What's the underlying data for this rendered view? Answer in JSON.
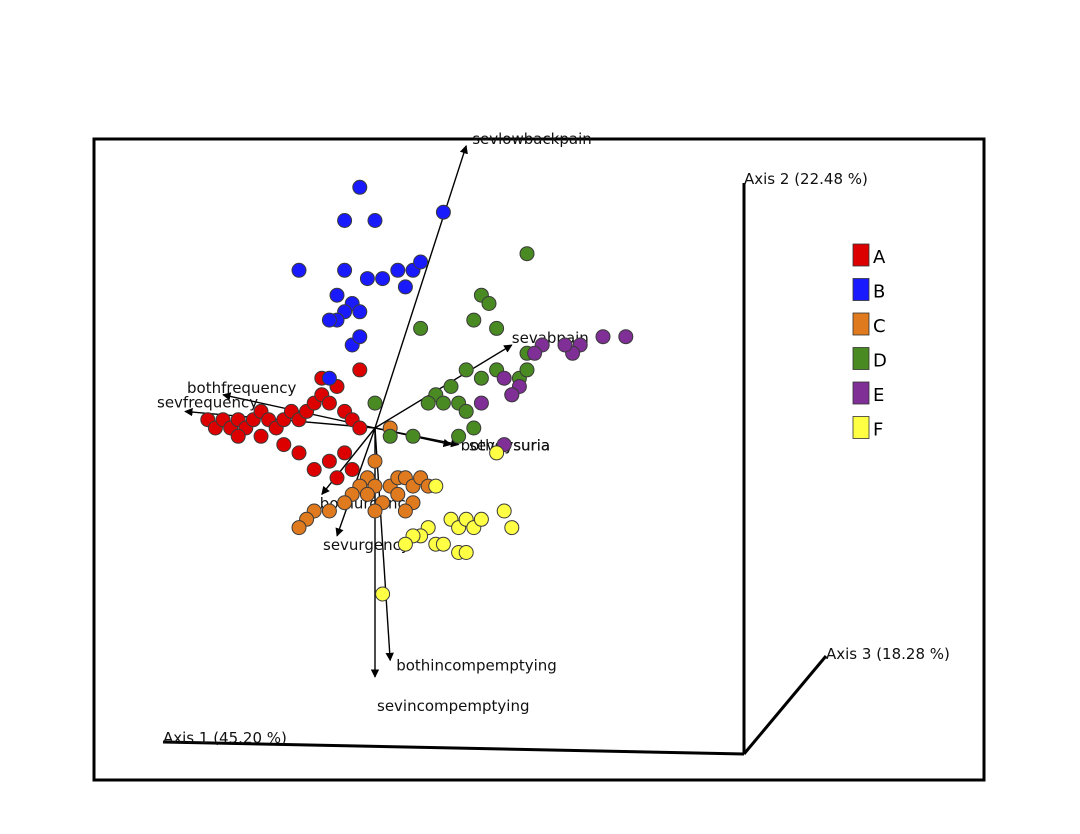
{
  "chart_data": {
    "type": "scatter",
    "title": "",
    "projection": "3d",
    "axes": {
      "x": "Axis 1 (45.20 %)",
      "y": "Axis 2 (22.48 %)",
      "z": "Axis 3 (18.28 %)"
    },
    "legend": {
      "position": "right",
      "groups": [
        {
          "name": "A",
          "color": "#dd0000"
        },
        {
          "name": "B",
          "color": "#1a1aff"
        },
        {
          "name": "C",
          "color": "#e07a1f"
        },
        {
          "name": "D",
          "color": "#4a8a22"
        },
        {
          "name": "E",
          "color": "#7f2f96"
        },
        {
          "name": "F",
          "color": "#ffff44"
        }
      ]
    },
    "biplot_vectors": [
      {
        "name": "sevlowbackpain",
        "end": [
          0.12,
          0.34
        ]
      },
      {
        "name": "sevabpain",
        "end": [
          0.18,
          0.1
        ]
      },
      {
        "name": "bothfrequency",
        "end": [
          -0.2,
          0.04
        ]
      },
      {
        "name": "sevfrequency",
        "end": [
          -0.25,
          0.02
        ]
      },
      {
        "name": "bothdysuria",
        "end": [
          0.11,
          -0.02
        ]
      },
      {
        "name": "sevdysuria",
        "end": [
          0.1,
          -0.02
        ]
      },
      {
        "name": "bothurgency",
        "end": [
          -0.07,
          -0.08
        ]
      },
      {
        "name": "sevurgency",
        "end": [
          -0.05,
          -0.13
        ]
      },
      {
        "name": "bothincompemptying",
        "end": [
          0.02,
          -0.28
        ]
      },
      {
        "name": "sevincompemptying",
        "end": [
          0.0,
          -0.3
        ]
      }
    ],
    "points": [
      {
        "group": "A",
        "x": -0.22,
        "y": 0.01
      },
      {
        "group": "A",
        "x": -0.21,
        "y": 0.0
      },
      {
        "group": "A",
        "x": -0.2,
        "y": 0.01
      },
      {
        "group": "A",
        "x": -0.19,
        "y": 0.0
      },
      {
        "group": "A",
        "x": -0.18,
        "y": 0.01
      },
      {
        "group": "A",
        "x": -0.17,
        "y": 0.0
      },
      {
        "group": "A",
        "x": -0.16,
        "y": 0.01
      },
      {
        "group": "A",
        "x": -0.15,
        "y": 0.02
      },
      {
        "group": "A",
        "x": -0.14,
        "y": 0.01
      },
      {
        "group": "A",
        "x": -0.13,
        "y": 0.0
      },
      {
        "group": "A",
        "x": -0.12,
        "y": 0.01
      },
      {
        "group": "A",
        "x": -0.11,
        "y": 0.02
      },
      {
        "group": "A",
        "x": -0.1,
        "y": 0.01
      },
      {
        "group": "A",
        "x": -0.09,
        "y": 0.02
      },
      {
        "group": "A",
        "x": -0.08,
        "y": 0.03
      },
      {
        "group": "A",
        "x": -0.07,
        "y": 0.04
      },
      {
        "group": "A",
        "x": -0.06,
        "y": 0.03
      },
      {
        "group": "A",
        "x": -0.05,
        "y": 0.05
      },
      {
        "group": "A",
        "x": -0.04,
        "y": 0.02
      },
      {
        "group": "A",
        "x": -0.03,
        "y": 0.01
      },
      {
        "group": "A",
        "x": -0.02,
        "y": 0.0
      },
      {
        "group": "A",
        "x": -0.18,
        "y": -0.01
      },
      {
        "group": "A",
        "x": -0.15,
        "y": -0.01
      },
      {
        "group": "A",
        "x": -0.12,
        "y": -0.02
      },
      {
        "group": "A",
        "x": -0.1,
        "y": -0.03
      },
      {
        "group": "A",
        "x": -0.06,
        "y": -0.04
      },
      {
        "group": "A",
        "x": -0.04,
        "y": -0.03
      },
      {
        "group": "A",
        "x": -0.03,
        "y": -0.05
      },
      {
        "group": "A",
        "x": -0.08,
        "y": -0.05
      },
      {
        "group": "A",
        "x": -0.05,
        "y": -0.06
      },
      {
        "group": "A",
        "x": -0.02,
        "y": 0.07
      },
      {
        "group": "A",
        "x": -0.07,
        "y": 0.06
      },
      {
        "group": "B",
        "x": -0.02,
        "y": 0.29
      },
      {
        "group": "B",
        "x": -0.04,
        "y": 0.25
      },
      {
        "group": "B",
        "x": 0.0,
        "y": 0.25
      },
      {
        "group": "B",
        "x": 0.09,
        "y": 0.26
      },
      {
        "group": "B",
        "x": -0.1,
        "y": 0.19
      },
      {
        "group": "B",
        "x": -0.04,
        "y": 0.19
      },
      {
        "group": "B",
        "x": -0.01,
        "y": 0.18
      },
      {
        "group": "B",
        "x": 0.01,
        "y": 0.18
      },
      {
        "group": "B",
        "x": 0.03,
        "y": 0.19
      },
      {
        "group": "B",
        "x": 0.04,
        "y": 0.17
      },
      {
        "group": "B",
        "x": 0.05,
        "y": 0.19
      },
      {
        "group": "B",
        "x": 0.06,
        "y": 0.2
      },
      {
        "group": "B",
        "x": -0.05,
        "y": 0.16
      },
      {
        "group": "B",
        "x": -0.03,
        "y": 0.15
      },
      {
        "group": "B",
        "x": -0.02,
        "y": 0.14
      },
      {
        "group": "B",
        "x": -0.04,
        "y": 0.14
      },
      {
        "group": "B",
        "x": -0.05,
        "y": 0.13
      },
      {
        "group": "B",
        "x": -0.06,
        "y": 0.13
      },
      {
        "group": "B",
        "x": -0.03,
        "y": 0.1
      },
      {
        "group": "B",
        "x": -0.02,
        "y": 0.11
      },
      {
        "group": "B",
        "x": -0.06,
        "y": 0.06
      },
      {
        "group": "C",
        "x": 0.02,
        "y": 0.0
      },
      {
        "group": "C",
        "x": 0.0,
        "y": -0.04
      },
      {
        "group": "C",
        "x": -0.01,
        "y": -0.06
      },
      {
        "group": "C",
        "x": 0.0,
        "y": -0.07
      },
      {
        "group": "C",
        "x": 0.02,
        "y": -0.07
      },
      {
        "group": "C",
        "x": 0.03,
        "y": -0.06
      },
      {
        "group": "C",
        "x": 0.04,
        "y": -0.06
      },
      {
        "group": "C",
        "x": 0.05,
        "y": -0.07
      },
      {
        "group": "C",
        "x": 0.06,
        "y": -0.06
      },
      {
        "group": "C",
        "x": -0.02,
        "y": -0.07
      },
      {
        "group": "C",
        "x": -0.03,
        "y": -0.08
      },
      {
        "group": "C",
        "x": -0.01,
        "y": -0.08
      },
      {
        "group": "C",
        "x": 0.01,
        "y": -0.09
      },
      {
        "group": "C",
        "x": 0.03,
        "y": -0.08
      },
      {
        "group": "C",
        "x": 0.05,
        "y": -0.09
      },
      {
        "group": "C",
        "x": -0.04,
        "y": -0.09
      },
      {
        "group": "C",
        "x": -0.06,
        "y": -0.1
      },
      {
        "group": "C",
        "x": -0.08,
        "y": -0.1
      },
      {
        "group": "C",
        "x": -0.09,
        "y": -0.11
      },
      {
        "group": "C",
        "x": -0.1,
        "y": -0.12
      },
      {
        "group": "C",
        "x": 0.0,
        "y": -0.1
      },
      {
        "group": "C",
        "x": 0.04,
        "y": -0.1
      },
      {
        "group": "C",
        "x": 0.07,
        "y": -0.07
      },
      {
        "group": "D",
        "x": 0.2,
        "y": 0.21
      },
      {
        "group": "D",
        "x": 0.14,
        "y": 0.16
      },
      {
        "group": "D",
        "x": 0.15,
        "y": 0.15
      },
      {
        "group": "D",
        "x": 0.13,
        "y": 0.13
      },
      {
        "group": "D",
        "x": 0.16,
        "y": 0.12
      },
      {
        "group": "D",
        "x": 0.06,
        "y": 0.12
      },
      {
        "group": "D",
        "x": 0.2,
        "y": 0.09
      },
      {
        "group": "D",
        "x": 0.12,
        "y": 0.07
      },
      {
        "group": "D",
        "x": 0.14,
        "y": 0.06
      },
      {
        "group": "D",
        "x": 0.16,
        "y": 0.07
      },
      {
        "group": "D",
        "x": 0.19,
        "y": 0.06
      },
      {
        "group": "D",
        "x": 0.2,
        "y": 0.07
      },
      {
        "group": "D",
        "x": 0.1,
        "y": 0.05
      },
      {
        "group": "D",
        "x": 0.08,
        "y": 0.04
      },
      {
        "group": "D",
        "x": 0.07,
        "y": 0.03
      },
      {
        "group": "D",
        "x": 0.09,
        "y": 0.03
      },
      {
        "group": "D",
        "x": 0.11,
        "y": 0.03
      },
      {
        "group": "D",
        "x": 0.12,
        "y": 0.02
      },
      {
        "group": "D",
        "x": 0.0,
        "y": 0.03
      },
      {
        "group": "D",
        "x": 0.13,
        "y": 0.0
      },
      {
        "group": "D",
        "x": 0.05,
        "y": -0.01
      },
      {
        "group": "D",
        "x": 0.02,
        "y": -0.01
      },
      {
        "group": "D",
        "x": 0.11,
        "y": -0.01
      },
      {
        "group": "E",
        "x": 0.33,
        "y": 0.11
      },
      {
        "group": "E",
        "x": 0.3,
        "y": 0.11
      },
      {
        "group": "E",
        "x": 0.27,
        "y": 0.1
      },
      {
        "group": "E",
        "x": 0.26,
        "y": 0.09
      },
      {
        "group": "E",
        "x": 0.25,
        "y": 0.1
      },
      {
        "group": "E",
        "x": 0.22,
        "y": 0.1
      },
      {
        "group": "E",
        "x": 0.21,
        "y": 0.09
      },
      {
        "group": "E",
        "x": 0.17,
        "y": 0.06
      },
      {
        "group": "E",
        "x": 0.19,
        "y": 0.05
      },
      {
        "group": "E",
        "x": 0.18,
        "y": 0.04
      },
      {
        "group": "E",
        "x": 0.18,
        "y": 0.04
      },
      {
        "group": "E",
        "x": 0.14,
        "y": 0.03
      },
      {
        "group": "E",
        "x": 0.17,
        "y": -0.02
      },
      {
        "group": "F",
        "x": 0.16,
        "y": -0.03
      },
      {
        "group": "F",
        "x": 0.08,
        "y": -0.07
      },
      {
        "group": "F",
        "x": 0.17,
        "y": -0.1
      },
      {
        "group": "F",
        "x": 0.1,
        "y": -0.11
      },
      {
        "group": "F",
        "x": 0.11,
        "y": -0.12
      },
      {
        "group": "F",
        "x": 0.12,
        "y": -0.11
      },
      {
        "group": "F",
        "x": 0.13,
        "y": -0.12
      },
      {
        "group": "F",
        "x": 0.14,
        "y": -0.11
      },
      {
        "group": "F",
        "x": 0.07,
        "y": -0.12
      },
      {
        "group": "F",
        "x": 0.06,
        "y": -0.13
      },
      {
        "group": "F",
        "x": 0.05,
        "y": -0.13
      },
      {
        "group": "F",
        "x": 0.04,
        "y": -0.14
      },
      {
        "group": "F",
        "x": 0.08,
        "y": -0.14
      },
      {
        "group": "F",
        "x": 0.09,
        "y": -0.14
      },
      {
        "group": "F",
        "x": 0.11,
        "y": -0.15
      },
      {
        "group": "F",
        "x": 0.12,
        "y": -0.15
      },
      {
        "group": "F",
        "x": 0.01,
        "y": -0.2
      },
      {
        "group": "F",
        "x": 0.18,
        "y": -0.12
      }
    ]
  }
}
